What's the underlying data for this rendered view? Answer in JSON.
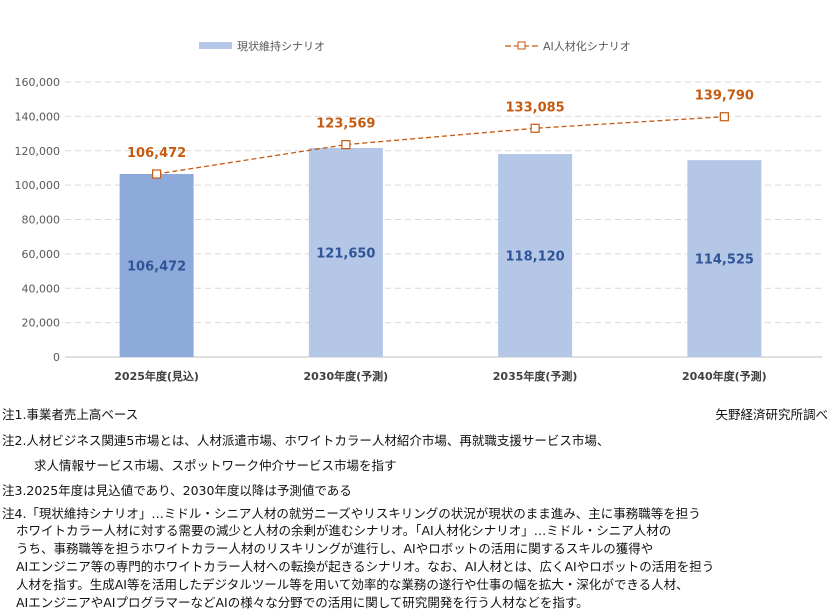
{
  "chart_data": {
    "type": "bar",
    "categories": [
      "2025年度(見込)",
      "2030年度(予測)",
      "2035年度(予測)",
      "2040年度(予測)"
    ],
    "series": [
      {
        "name": "現状維持シナリオ",
        "type": "bar",
        "values": [
          106472,
          121650,
          118120,
          114525
        ],
        "data_labels": [
          "106,472",
          "121,650",
          "118,120",
          "114,525"
        ],
        "color": "#b4c7e7",
        "highlight_color": "#8eaadb"
      },
      {
        "name": "AI人材化シナリオ",
        "type": "line",
        "values": [
          106472,
          123569,
          133085,
          139790
        ],
        "data_labels": [
          "106,472",
          "123,569",
          "133,085",
          "139,790"
        ],
        "color": "#c55a11"
      }
    ],
    "ylim": [
      0,
      160000
    ],
    "yticks": [
      "0",
      "20,000",
      "40,000",
      "60,000",
      "80,000",
      "100,000",
      "120,000",
      "140,000",
      "160,000"
    ],
    "grid": true,
    "legend": "top"
  },
  "notes": {
    "n1": "注1.事業者売上高ベース",
    "source": "矢野経済研究所調べ",
    "n2a": "注2.人材ビジネス関連5市場とは、人材派遣市場、ホワイトカラー人材紹介市場、再就職支援サービス市場、",
    "n2b": "求人情報サービス市場、スポットワーク仲介サービス市場を指す",
    "n3": "注3.2025年度は見込値であり、2030年度以降は予測値である",
    "n4": [
      "注4.「現状維持シナリオ」…ミドル・シニア人材の就労ニーズやリスキリングの状況が現状のまま進み、主に事務職等を担う",
      "ホワイトカラー人材に対する需要の減少と人材の余剰が進むシナリオ。「AI人材化シナリオ」…ミドル・シニア人材の",
      "うち、事務職等を担うホワイトカラー人材のリスキリングが進行し、AIやロボットの活用に関するスキルの獲得や",
      "AIエンジニア等の専門的ホワイトカラー人材への転換が起きるシナリオ。なお、AI人材とは、広くAIやロボットの活用を担う",
      "人材を指す。生成AI等を活用したデジタルツール等を用いて効率的な業務の遂行や仕事の幅を拡大・深化ができる人材、",
      "AIエンジニアやAIプログラマーなどAIの様々な分野での活用に関して研究開発を行う人材などを指す。"
    ]
  }
}
